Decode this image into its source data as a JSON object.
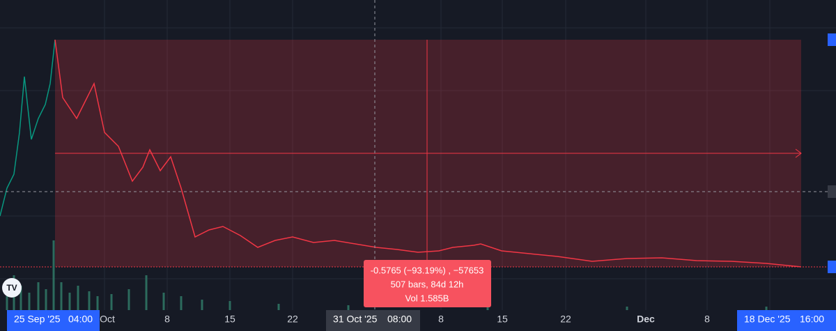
{
  "x_axis": {
    "labels": [
      "Oct",
      "8",
      "15",
      "22",
      "8",
      "15",
      "22",
      "Dec",
      "8"
    ]
  },
  "crosshair": {
    "date": "31 Oct '25",
    "time": "08:00"
  },
  "range_start": {
    "date": "25 Sep '25",
    "time": "04:00"
  },
  "range_end": {
    "date": "18 Dec '25",
    "time": "16:00"
  },
  "measure": {
    "change": "-0.5765 (−93.19%) , −57653",
    "bars": "507 bars, 84d 12h",
    "volume": "Vol 1.585B"
  }
}
